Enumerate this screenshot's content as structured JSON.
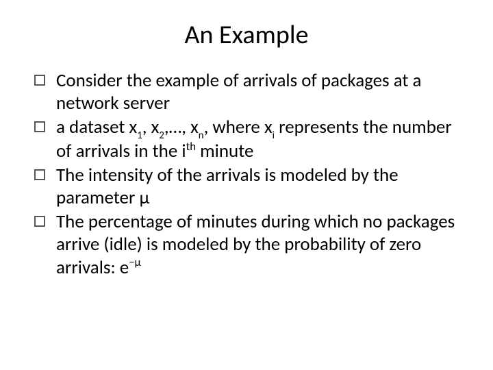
{
  "title": "An Example",
  "bullets": [
    {
      "pre": "Consider the example of arrivals of packages at a network server"
    },
    {
      "pre": "a dataset x",
      "s1": "1",
      "m1": ", x",
      "s2": "2",
      "m2": ",…, x",
      "s3": "n",
      "m3": ", where x",
      "s4": "i",
      "m4": " represents the number of arrivals in the i",
      "sup1": "th",
      "m5": " minute"
    },
    {
      "pre": "The intensity of the arrivals is modeled by the parameter μ"
    },
    {
      "pre": "The percentage of minutes during which no packages arrive (idle) is modeled by the probability of zero arrivals: e",
      "sup1": "−μ"
    }
  ]
}
